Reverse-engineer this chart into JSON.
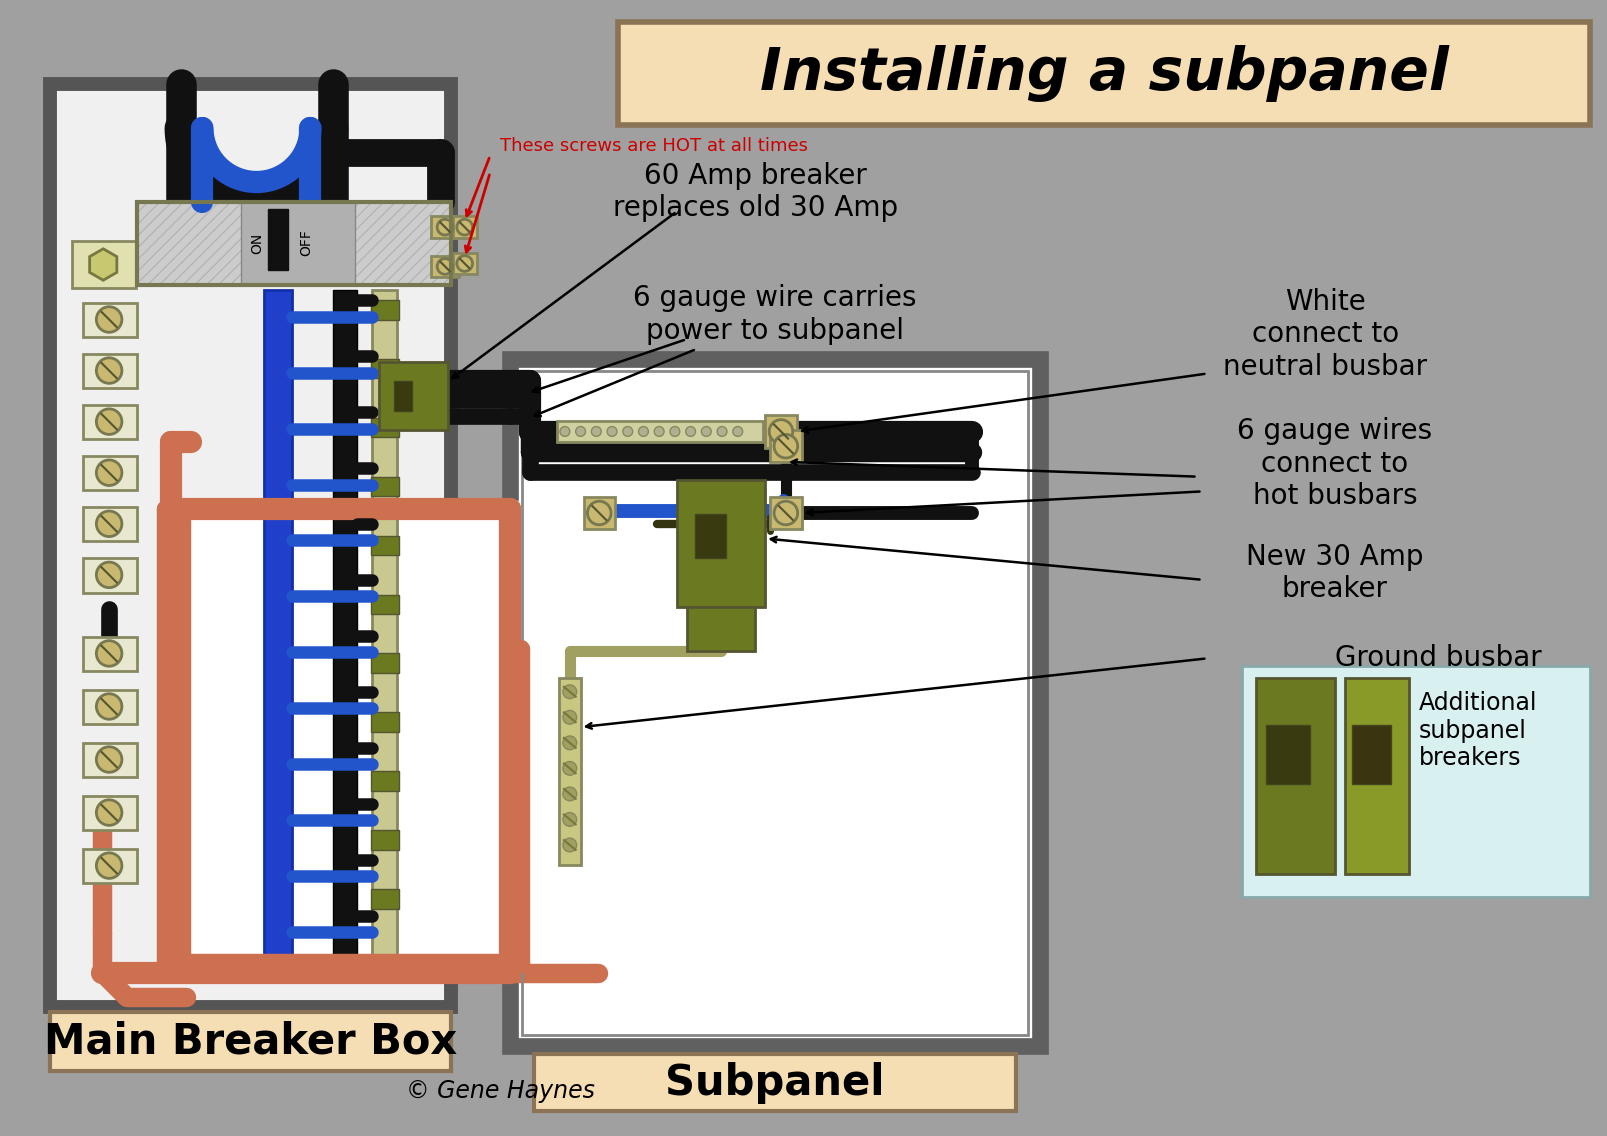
{
  "title": "Installing a subpanel",
  "title_bg": "#f5deb3",
  "title_border": "#8B7355",
  "main_box_label": "Main Breaker Box",
  "main_box_bg": "#f0f0f0",
  "main_box_border": "#555555",
  "subpanel_label": "Subpanel",
  "subpanel_bg": "#ffffff",
  "subpanel_border": "#606060",
  "copyright": "© Gene Haynes",
  "wire_black": "#111111",
  "wire_blue": "#2255cc",
  "wire_copper": "#cd7050",
  "breaker_color": "#6b7a20",
  "breaker_dark": "#3a3a10",
  "screw_color": "#c8b870",
  "busbar_color": "#c8c890",
  "page_bg": "#a0a0a0",
  "hot_screw_annotation": "These screws are HOT at all times",
  "hot_screw_color": "#cc0000",
  "ann1": "60 Amp breaker\nreplaces old 30 Amp",
  "ann2": "6 gauge wire carries\npower to subpanel",
  "ann3": "White\nconnect to\nneutral busbar",
  "ann4": "6 gauge wires\nconnect to\nhot busbars",
  "ann5": "New 30 Amp\nbreaker",
  "ann6": "Ground busbar",
  "ann7": "Additional\nsubpanel\nbreakers"
}
